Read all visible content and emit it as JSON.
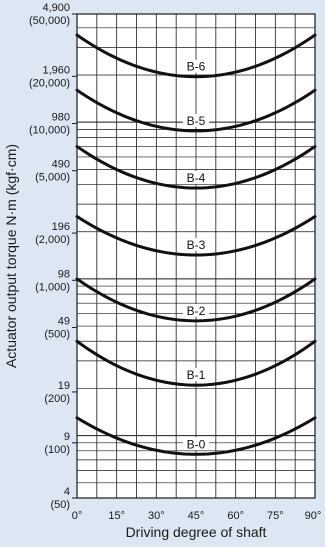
{
  "chart_data": {
    "type": "line",
    "title": "",
    "xlabel": "Driving degree of shaft",
    "ylabel": "Actuator output torque N·m (kgf·cm)",
    "xlim": [
      0,
      90
    ],
    "x_ticks": [
      "0°",
      "15°",
      "30°",
      "45°",
      "60°",
      "75°",
      "90°"
    ],
    "y_scale": "log",
    "ylim": [
      4,
      4900
    ],
    "y_ticks": [
      {
        "value": 4900,
        "label": "4,900",
        "sub": "(50,000)"
      },
      {
        "value": 1960,
        "label": "1,960",
        "sub": "(20,000)"
      },
      {
        "value": 980,
        "label": "980",
        "sub": "(10,000)"
      },
      {
        "value": 490,
        "label": "490",
        "sub": "(5,000)"
      },
      {
        "value": 196,
        "label": "196",
        "sub": "(2,000)"
      },
      {
        "value": 98,
        "label": "98",
        "sub": "(1,000)"
      },
      {
        "value": 49,
        "label": "49",
        "sub": "(500)"
      },
      {
        "value": 19,
        "label": "19",
        "sub": "(200)"
      },
      {
        "value": 9,
        "label": "9",
        "sub": "(100)"
      },
      {
        "value": 4,
        "label": "4",
        "sub": "(50)"
      }
    ],
    "grid": true,
    "x": [
      0,
      15,
      30,
      45,
      60,
      75,
      90
    ],
    "series": [
      {
        "name": "B-6",
        "values": [
          3600,
          2500,
          2050,
          1950,
          2050,
          2500,
          3600
        ]
      },
      {
        "name": "B-5",
        "values": [
          1600,
          1150,
          930,
          880,
          930,
          1150,
          1600
        ]
      },
      {
        "name": "B-4",
        "values": [
          700,
          500,
          400,
          380,
          400,
          500,
          700
        ]
      },
      {
        "name": "B-3",
        "values": [
          250,
          180,
          150,
          142,
          150,
          180,
          250
        ]
      },
      {
        "name": "B-2",
        "values": [
          100,
          70,
          57,
          54,
          57,
          70,
          100
        ]
      },
      {
        "name": "B-1",
        "values": [
          40,
          28,
          23,
          21,
          23,
          28,
          40
        ]
      },
      {
        "name": "B-0",
        "values": [
          13,
          9.5,
          8,
          7.6,
          8,
          9.5,
          13
        ]
      }
    ],
    "line_color": "#111111",
    "grid_color": "#1a1a1a",
    "background_color": "#dde6f3",
    "plot_background_color": "#ffffff"
  }
}
